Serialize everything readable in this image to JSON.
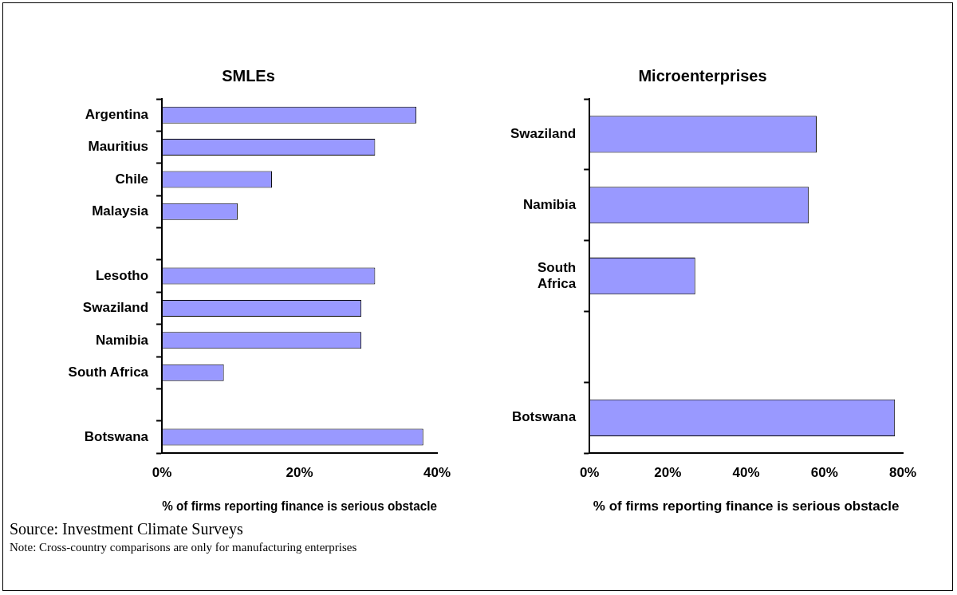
{
  "chart_data": [
    {
      "type": "bar",
      "orientation": "horizontal",
      "title": "SMLEs",
      "xlabel": "% of firms reporting finance is serious obstacle",
      "categories": [
        "Argentina",
        "Mauritius",
        "Chile",
        "Malaysia",
        null,
        "Lesotho",
        "Swaziland",
        "Namibia",
        "South Africa",
        null,
        "Botswana"
      ],
      "values": [
        37,
        31,
        16,
        11,
        null,
        31,
        29,
        29,
        9,
        null,
        38
      ],
      "color": "#9999ff",
      "xlim": [
        0,
        40
      ],
      "xticks": [
        {
          "value": 0,
          "label": "0%"
        },
        {
          "value": 20,
          "label": "20%"
        },
        {
          "value": 40,
          "label": "40%"
        }
      ],
      "annotations": [
        "Source: Investment Climate Surveys",
        "Note: Cross-country comparisons are only for manufacturing enterprises"
      ]
    },
    {
      "type": "bar",
      "orientation": "horizontal",
      "title": "Microenterprises",
      "xlabel": "% of firms reporting finance is serious obstacle",
      "categories": [
        "Swaziland",
        "Namibia",
        "South Africa",
        null,
        "Botswana"
      ],
      "values": [
        58,
        56,
        27,
        null,
        78
      ],
      "color": "#9999ff",
      "xlim": [
        0,
        80
      ],
      "xticks": [
        {
          "value": 0,
          "label": "0%"
        },
        {
          "value": 20,
          "label": "20%"
        },
        {
          "value": 40,
          "label": "40%"
        },
        {
          "value": 60,
          "label": "60%"
        },
        {
          "value": 80,
          "label": "80%"
        }
      ]
    }
  ]
}
